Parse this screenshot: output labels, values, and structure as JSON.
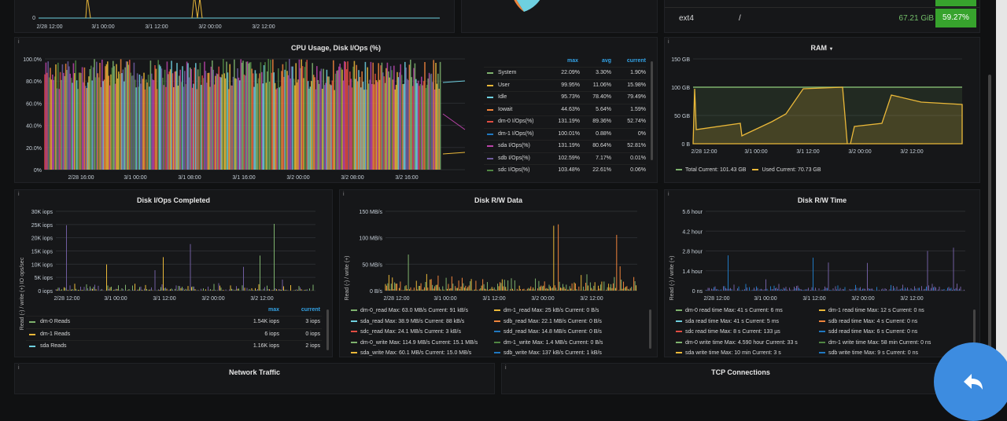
{
  "top_panels": {
    "mini_chart": {
      "ytick": "0",
      "xticks": [
        "2/28 12:00",
        "3/1 00:00",
        "3/1 12:00",
        "3/2 00:00",
        "3/2 12:00"
      ]
    },
    "fs_table": {
      "fs": "ext4",
      "mount": "/",
      "size": "67.21 GiB",
      "pct": "59.27%"
    }
  },
  "cpu": {
    "title": "CPU Usage, Disk I/Ops (%)",
    "yticks": [
      "100.0%",
      "80.0%",
      "60.0%",
      "40.0%",
      "20.0%",
      "0%"
    ],
    "xticks": [
      "2/28 16:00",
      "3/1 00:00",
      "3/1 08:00",
      "3/1 16:00",
      "3/2 00:00",
      "3/2 08:00",
      "3/2 16:00"
    ],
    "headers": {
      "max": "max",
      "avg": "avg",
      "current": "current"
    },
    "rows": [
      {
        "name": "System",
        "color": "#7eb26d",
        "max": "22.09%",
        "avg": "3.30%",
        "cur": "1.90%"
      },
      {
        "name": "User",
        "color": "#eab839",
        "max": "99.95%",
        "avg": "11.06%",
        "cur": "15.98%"
      },
      {
        "name": "Idle",
        "color": "#6ed0e0",
        "max": "95.73%",
        "avg": "78.40%",
        "cur": "79.49%"
      },
      {
        "name": "Iowait",
        "color": "#ef843c",
        "max": "44.63%",
        "avg": "5.64%",
        "cur": "1.59%"
      },
      {
        "name": "dm-0 I/Ops(%)",
        "color": "#e24d42",
        "max": "131.19%",
        "avg": "89.36%",
        "cur": "52.74%"
      },
      {
        "name": "dm-1 I/Ops(%)",
        "color": "#1f78c1",
        "max": "100.01%",
        "avg": "0.88%",
        "cur": "0%"
      },
      {
        "name": "sda I/Ops(%)",
        "color": "#ba43a9",
        "max": "131.19%",
        "avg": "80.64%",
        "cur": "52.81%"
      },
      {
        "name": "sdb I/Ops(%)",
        "color": "#705da0",
        "max": "102.59%",
        "avg": "7.17%",
        "cur": "0.01%"
      },
      {
        "name": "sdc I/Ops(%)",
        "color": "#508642",
        "max": "103.48%",
        "avg": "22.61%",
        "cur": "0.06%"
      }
    ]
  },
  "ram": {
    "title": "RAM",
    "yticks": [
      "150 GB",
      "100 GB",
      "50 GB",
      "0 B"
    ],
    "xticks": [
      "2/28 12:00",
      "3/1 00:00",
      "3/1 12:00",
      "3/2 00:00",
      "3/2 12:00"
    ],
    "legend": [
      {
        "text": "Total  Current: 101.43 GB",
        "color": "#7eb26d"
      },
      {
        "text": "Used  Current: 70.73 GB",
        "color": "#eab839"
      }
    ]
  },
  "iops": {
    "title": "Disk I/Ops Completed",
    "ylabel": "Read (-) / write (+) IO ops/sec",
    "yticks": [
      "30K iops",
      "25K iops",
      "20K iops",
      "15K iops",
      "10K iops",
      "5K iops",
      "0 iops"
    ],
    "xticks": [
      "2/28 12:00",
      "3/1 00:00",
      "3/1 12:00",
      "3/2 00:00",
      "3/2 12:00"
    ],
    "headers": {
      "max": "max",
      "current": "current"
    },
    "rows": [
      {
        "name": "dm-0 Reads",
        "color": "#7eb26d",
        "max": "1.54K iops",
        "cur": "3 iops"
      },
      {
        "name": "dm-1 Reads",
        "color": "#eab839",
        "max": "6 iops",
        "cur": "0 iops"
      },
      {
        "name": "sda Reads",
        "color": "#6ed0e0",
        "max": "1.16K iops",
        "cur": "2 iops"
      }
    ]
  },
  "rwdata": {
    "title": "Disk R/W Data",
    "ylabel": "Read (-) / write (+)",
    "yticks": [
      "150 MB/s",
      "100 MB/s",
      "50 MB/s",
      "0 B/s"
    ],
    "xticks": [
      "2/28 12:00",
      "3/1 00:00",
      "3/1 12:00",
      "3/2 00:00",
      "3/2 12:00"
    ],
    "legend": [
      [
        {
          "text": "dm-0_read  Max: 63.0 MB/s  Current: 91 kB/s",
          "color": "#7eb26d"
        },
        {
          "text": "dm-1_read  Max: 25 kB/s  Current: 0 B/s",
          "color": "#eab839"
        }
      ],
      [
        {
          "text": "sda_read  Max: 38.9 MB/s  Current: 88 kB/s",
          "color": "#6ed0e0"
        },
        {
          "text": "sdb_read  Max: 22.1 MB/s  Current: 0 B/s",
          "color": "#ef843c"
        }
      ],
      [
        {
          "text": "sdc_read  Max: 24.1 MB/s  Current: 3 kB/s",
          "color": "#e24d42"
        },
        {
          "text": "sdd_read  Max: 14.8 MB/s  Current: 0 B/s",
          "color": "#1f78c1"
        }
      ],
      [
        {
          "text": "dm-0_write  Max: 114.9 MB/s  Current: 15.1 MB/s",
          "color": "#7eb26d"
        },
        {
          "text": "dm-1_write  Max: 1.4 MB/s  Current: 0 B/s",
          "color": "#508642"
        }
      ],
      [
        {
          "text": "sda_write  Max: 60.1 MB/s  Current: 15.0 MB/s",
          "color": "#eab839"
        },
        {
          "text": "sdb_write  Max: 137 kB/s  Current: 1 kB/s",
          "color": "#1f78c1"
        }
      ]
    ]
  },
  "rwtime": {
    "title": "Disk R/W Time",
    "ylabel": "Read (-) / write (+)",
    "yticks": [
      "5.6 hour",
      "4.2 hour",
      "2.8 hour",
      "1.4 hour",
      "0 ns"
    ],
    "xticks": [
      "2/28 12:00",
      "3/1 00:00",
      "3/1 12:00",
      "3/2 00:00",
      "3/2 12:00"
    ],
    "legend": [
      [
        {
          "text": "dm-0 read time  Max: 41 s  Current: 6 ms",
          "color": "#7eb26d"
        },
        {
          "text": "dm-1 read time  Max: 12 s  Current: 0 ns",
          "color": "#eab839"
        }
      ],
      [
        {
          "text": "sda read time  Max: 41 s  Current: 5 ms",
          "color": "#6ed0e0"
        },
        {
          "text": "sdb read time  Max: 4 s  Current: 0 ns",
          "color": "#ef843c"
        }
      ],
      [
        {
          "text": "sdc read time  Max: 8 s  Current: 133 µs",
          "color": "#e24d42"
        },
        {
          "text": "sdd read time  Max: 6 s  Current: 0 ns",
          "color": "#1f78c1"
        }
      ],
      [
        {
          "text": "dm-0 write time  Max: 4.590 hour  Current: 33 s",
          "color": "#7eb26d"
        },
        {
          "text": "dm-1 write time  Max: 58 min  Current: 0 ns",
          "color": "#508642"
        }
      ],
      [
        {
          "text": "sda write time  Max: 10 min  Current: 3 s",
          "color": "#eab839"
        },
        {
          "text": "sdb write time  Max: 9 s  Current: 0 ns",
          "color": "#1f78c1"
        }
      ]
    ]
  },
  "bottom": {
    "net_title": "Network Traffic",
    "tcp_title": "TCP Connections"
  },
  "info_glyph": "i"
}
